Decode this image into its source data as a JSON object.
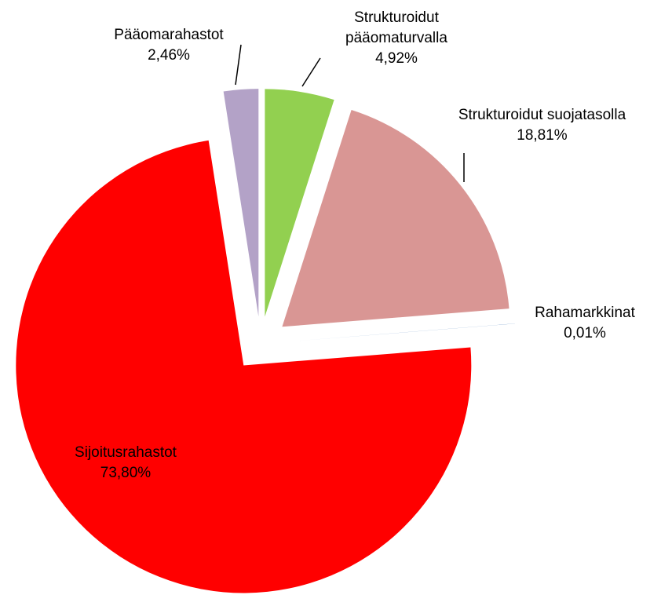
{
  "chart_data": {
    "type": "pie",
    "categories": [
      "Strukturoidut pääomaturvalla",
      "Strukturoidut suojatasolla",
      "Rahamarkkinat",
      "Sijoitusrahastot",
      "Pääomarahastot"
    ],
    "values": [
      4.92,
      18.81,
      0.01,
      73.8,
      2.46
    ],
    "value_labels": [
      "4,92%",
      "18,81%",
      "0,01%",
      "73,80%",
      "2,46%"
    ],
    "colors": [
      "#92d050",
      "#d99694",
      "#4f81bd",
      "#ff0000",
      "#b3a2c7"
    ]
  }
}
